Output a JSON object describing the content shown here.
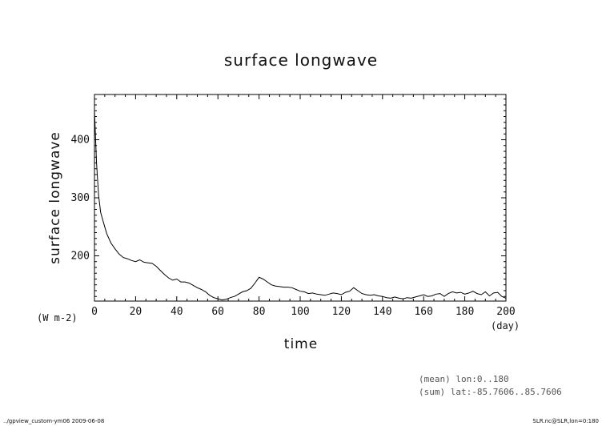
{
  "chart_data": {
    "type": "line",
    "title": "surface longwave",
    "xlabel": "time",
    "ylabel": "surface longwave",
    "x_unit": "(day)",
    "y_unit": "(W m-2)",
    "xlim": [
      0,
      200
    ],
    "ylim": [
      122,
      478
    ],
    "grid": false,
    "x_ticks": [
      0,
      20,
      40,
      60,
      80,
      100,
      120,
      140,
      160,
      180,
      200
    ],
    "y_ticks": [
      200,
      300,
      400
    ],
    "series": [
      {
        "x": [
          0,
          1,
          2,
          3,
          4,
          5,
          6,
          8,
          10,
          12,
          14,
          16,
          18,
          20,
          22,
          24,
          26,
          28,
          30,
          32,
          34,
          36,
          38,
          40,
          42,
          44,
          46,
          48,
          50,
          52,
          54,
          56,
          58,
          60,
          62,
          64,
          66,
          68,
          70,
          72,
          74,
          76,
          78,
          80,
          82,
          84,
          86,
          88,
          90,
          92,
          94,
          96,
          98,
          100,
          102,
          104,
          106,
          108,
          110,
          112,
          114,
          116,
          118,
          120,
          122,
          124,
          126,
          128,
          130,
          132,
          134,
          136,
          138,
          140,
          142,
          144,
          146,
          148,
          150,
          152,
          154,
          156,
          158,
          160,
          162,
          164,
          166,
          168,
          170,
          172,
          174,
          176,
          178,
          180,
          182,
          184,
          186,
          188,
          190,
          192,
          194,
          196,
          198,
          200
        ],
        "values": [
          450,
          360,
          305,
          275,
          262,
          250,
          238,
          222,
          212,
          203,
          197,
          195,
          192,
          190,
          193,
          189,
          188,
          187,
          182,
          175,
          168,
          162,
          158,
          160,
          155,
          155,
          153,
          149,
          145,
          142,
          138,
          132,
          128,
          126,
          124,
          125,
          128,
          130,
          134,
          138,
          140,
          144,
          153,
          163,
          160,
          155,
          150,
          148,
          147,
          146,
          146,
          145,
          142,
          139,
          138,
          135,
          136,
          134,
          133,
          132,
          134,
          136,
          135,
          133,
          137,
          139,
          145,
          140,
          135,
          133,
          132,
          133,
          131,
          130,
          128,
          127,
          129,
          127,
          126,
          128,
          127,
          129,
          131,
          133,
          130,
          131,
          134,
          135,
          130,
          135,
          138,
          136,
          137,
          134,
          136,
          139,
          135,
          133,
          138,
          131,
          136,
          137,
          130,
          127
        ]
      }
    ]
  },
  "notes": {
    "mean": "(mean) lon:0..180",
    "sum": "(sum) lat:-85.7606..85.7606"
  },
  "footer": {
    "left": "../gpview_custom-ym06  2009-06-08",
    "right": "SLR.nc@SLR,lon=0:180"
  }
}
